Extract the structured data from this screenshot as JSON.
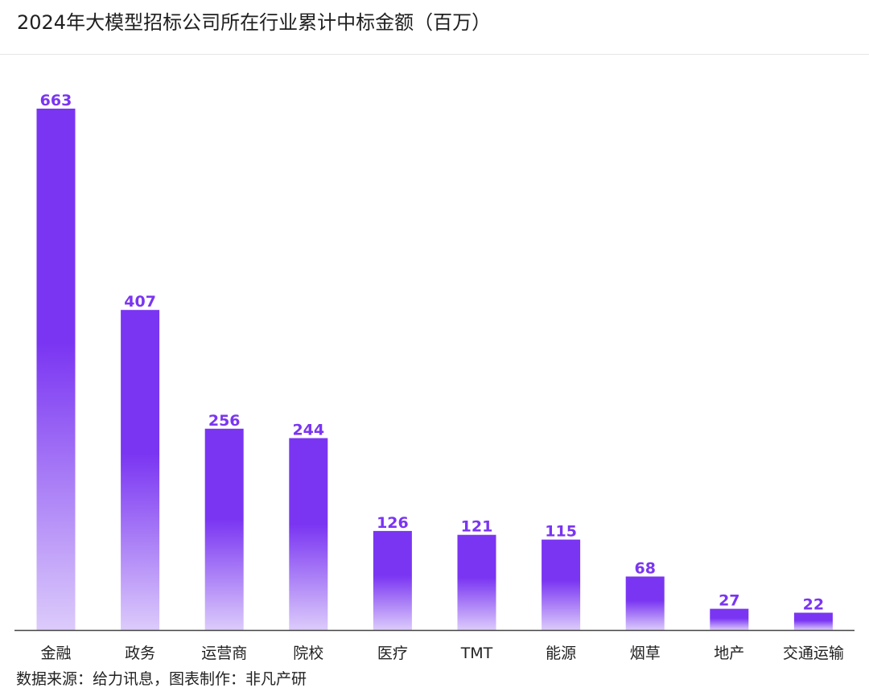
{
  "header": {
    "title": "2024年大模型招标公司所在行业累计中标金额（百万）"
  },
  "footer": {
    "source": "数据来源：给力讯息，图表制作：非凡产研"
  },
  "colors": {
    "bar_top": "#7a35f2",
    "bar_bottom": "#dccbfb",
    "value_label": "#7a35f2",
    "axis": "#444444",
    "category_label": "#222222"
  },
  "chart_data": {
    "type": "bar",
    "title": "2024年大模型招标公司所在行业累计中标金额（百万）",
    "categories": [
      "金融",
      "政务",
      "运营商",
      "院校",
      "医疗",
      "TMT",
      "能源",
      "烟草",
      "地产",
      "交通运输"
    ],
    "values": [
      663,
      407,
      256,
      244,
      126,
      121,
      115,
      68,
      27,
      22
    ],
    "xlabel": "",
    "ylabel": "",
    "ylim": [
      0,
      663
    ],
    "grid": false,
    "legend": "none"
  }
}
